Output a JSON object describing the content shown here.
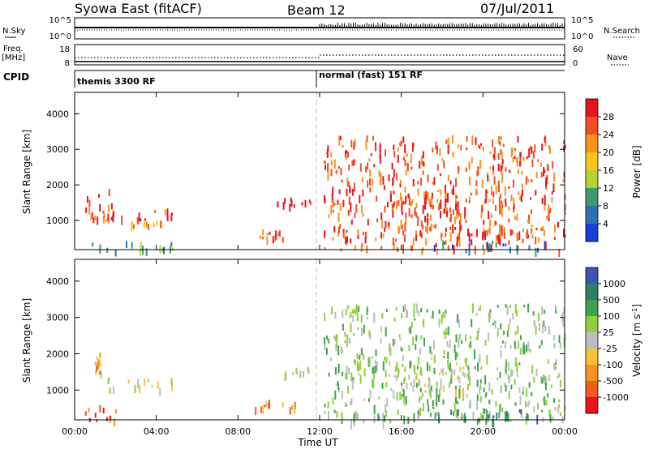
{
  "header": {
    "station": "Syowa East (fitACF)",
    "beam": "Beam 12",
    "date": "07/Jul/2011"
  },
  "panels": {
    "nsky": {
      "left_label": "N.Sky",
      "left_ticks": [
        "10^5",
        "10^0"
      ],
      "right_label": "N.Search",
      "right_ticks": [
        "10^5",
        "10^0"
      ]
    },
    "freq": {
      "left_label_1": "Freq.",
      "left_label_2": "[MHz]",
      "left_ticks": [
        "18",
        "8"
      ],
      "right_label": "Nave",
      "right_ticks": [
        "60",
        "0"
      ]
    },
    "cpid": {
      "label": "CPID",
      "modes": [
        "themis 3300 RF",
        "normal (fast) 151 RF"
      ]
    }
  },
  "colorbars": {
    "power": {
      "title": "Power [dB]",
      "ticks": [
        "28",
        "24",
        "20",
        "16",
        "12",
        "8",
        "4"
      ],
      "colors": [
        "#e8141c",
        "#f04e23",
        "#f7931e",
        "#f9c518",
        "#b5d334",
        "#3f9b6b",
        "#2f6fb5",
        "#1a3fd9"
      ]
    },
    "velocity": {
      "title": "Velocity [m s",
      "title_sup": "-1",
      "title_end": "]",
      "ticks": [
        "1000",
        "500",
        "100",
        "25",
        "-25",
        "-100",
        "-500",
        "-1000"
      ],
      "colors": [
        "#3a56b0",
        "#2f7d6b",
        "#3fa34d",
        "#8fcf3c",
        "#bdbdbd",
        "#f7c23a",
        "#f7931e",
        "#f25c1f",
        "#e8141c"
      ]
    }
  },
  "chart_data": {
    "type": "heatmap",
    "xlabel": "Time UT",
    "ylabel": "Slant Range [km]",
    "x_ticks": [
      "00:00",
      "04:00",
      "08:00",
      "12:00",
      "16:00",
      "20:00",
      "00:00"
    ],
    "y_ticks": [
      "1000",
      "2000",
      "3000",
      "4000"
    ],
    "xlim_hours": [
      0,
      24
    ],
    "ylim_km": [
      180,
      4600
    ],
    "cpid_switch_hour": 12,
    "freq_mhz": {
      "segments": [
        {
          "start_hour": 0,
          "end_hour": 12,
          "value": 11.5
        },
        {
          "start_hour": 12,
          "end_hour": 24,
          "value": 12.8
        }
      ]
    },
    "power_regions": [
      {
        "t0": 0.3,
        "t1": 5.2,
        "r0": 180,
        "r1": 420,
        "level": 2
      },
      {
        "t0": 0.5,
        "t1": 2.0,
        "r0": 1000,
        "r1": 1900,
        "level": 6
      },
      {
        "t0": 1.0,
        "t1": 5.0,
        "r0": 1050,
        "r1": 1350,
        "level": 6
      },
      {
        "t0": 2.5,
        "t1": 4.2,
        "r0": 880,
        "r1": 1000,
        "level": 5
      },
      {
        "t0": 8.8,
        "t1": 10.8,
        "r0": 520,
        "r1": 760,
        "level": 6
      },
      {
        "t0": 9.9,
        "t1": 11.7,
        "r0": 1450,
        "r1": 1650,
        "level": 7
      },
      {
        "t0": 12.2,
        "t1": 24.0,
        "r0": 180,
        "r1": 3400,
        "level": 6
      },
      {
        "t0": 16.2,
        "t1": 19.2,
        "r0": 1100,
        "r1": 1850,
        "level": 6
      },
      {
        "t0": 18.0,
        "t1": 23.5,
        "r0": 600,
        "r1": 800,
        "level": 6
      },
      {
        "t0": 17.5,
        "t1": 23.0,
        "r0": 200,
        "r1": 480,
        "level": 1
      }
    ],
    "velocity_regions": [
      {
        "t0": 0.3,
        "t1": 2.0,
        "r0": 180,
        "r1": 600,
        "level": 7
      },
      {
        "t0": 0.9,
        "t1": 1.3,
        "r0": 1500,
        "r1": 2100,
        "level": 6
      },
      {
        "t0": 1.4,
        "t1": 5.0,
        "r0": 1050,
        "r1": 1350,
        "level": 4
      },
      {
        "t0": 8.8,
        "t1": 10.8,
        "r0": 520,
        "r1": 760,
        "level": 6
      },
      {
        "t0": 10.2,
        "t1": 11.5,
        "r0": 1450,
        "r1": 1650,
        "level": 4
      },
      {
        "t0": 12.2,
        "t1": 24.0,
        "r0": 180,
        "r1": 3400,
        "level": 3
      },
      {
        "t0": 16.5,
        "t1": 19.2,
        "r0": 1000,
        "r1": 1800,
        "level": 4
      },
      {
        "t0": 17.5,
        "t1": 23.5,
        "r0": 200,
        "r1": 500,
        "level": 1
      }
    ]
  }
}
